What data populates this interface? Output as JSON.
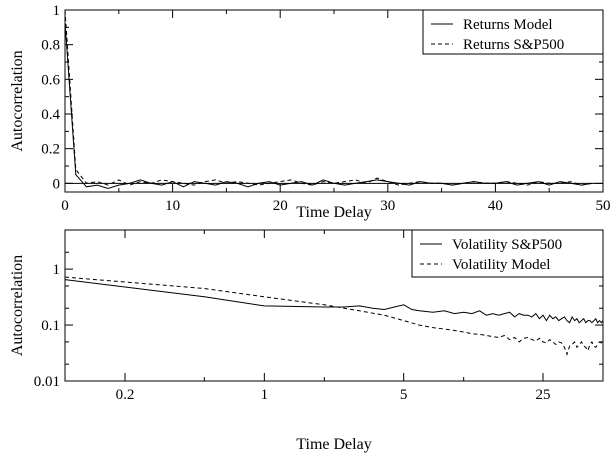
{
  "chart_data": [
    {
      "type": "line",
      "title": "",
      "xlabel": "Time Delay",
      "ylabel": "Autocorrelation",
      "xlim": [
        0,
        50
      ],
      "ylim": [
        -0.05,
        1.0
      ],
      "x_ticks": [
        0,
        10,
        20,
        30,
        40,
        50
      ],
      "y_ticks": [
        0,
        0.2,
        0.4,
        0.6,
        0.8,
        1
      ],
      "x_tick_labels": [
        "0",
        "10",
        "20",
        "30",
        "40",
        "50"
      ],
      "y_tick_labels": [
        "0",
        "0.2",
        "0.4",
        "0.6",
        "0.8",
        "1"
      ],
      "grid": false,
      "zero_line": true,
      "legend": "top-right",
      "series": [
        {
          "name": "Returns Model",
          "style": "solid",
          "x": [
            0,
            1,
            2,
            3,
            4,
            5,
            6,
            7,
            8,
            9,
            10,
            11,
            12,
            13,
            14,
            15,
            16,
            17,
            18,
            19,
            20,
            21,
            22,
            23,
            24,
            25,
            26,
            27,
            28,
            29,
            30,
            31,
            32,
            33,
            34,
            35,
            36,
            37,
            38,
            39,
            40,
            41,
            42,
            43,
            44,
            45,
            46,
            47,
            48,
            49
          ],
          "y": [
            0.93,
            0.05,
            -0.02,
            -0.01,
            -0.03,
            -0.01,
            0.0,
            0.02,
            0.0,
            -0.01,
            0.01,
            -0.02,
            0.01,
            0.0,
            -0.01,
            0.01,
            0.0,
            -0.02,
            0.0,
            0.01,
            -0.01,
            0.0,
            0.01,
            -0.01,
            0.02,
            0.0,
            -0.01,
            0.0,
            0.01,
            0.02,
            0.01,
            0.0,
            -0.01,
            0.01,
            0.0,
            0.0,
            -0.01,
            0.0,
            0.01,
            0.0,
            0.0,
            0.01,
            -0.01,
            0.0,
            0.01,
            -0.01,
            0.01,
            0.0,
            -0.01,
            0.0
          ]
        },
        {
          "name": "Returns S&P500",
          "style": "dashed",
          "x": [
            0,
            1,
            2,
            3,
            4,
            5,
            6,
            7,
            8,
            9,
            10,
            11,
            12,
            13,
            14,
            15,
            16,
            17,
            18,
            19,
            20,
            21,
            22,
            23,
            24,
            25,
            26,
            27,
            28,
            29,
            30,
            31,
            32,
            33,
            34,
            35,
            36,
            37,
            38,
            39,
            40,
            41,
            42,
            43,
            44,
            45,
            46,
            47,
            48,
            49
          ],
          "y": [
            1.0,
            0.08,
            0.0,
            0.01,
            -0.01,
            0.02,
            -0.01,
            0.01,
            0.0,
            0.02,
            0.01,
            0.0,
            -0.01,
            0.01,
            0.02,
            0.0,
            0.01,
            0.0,
            -0.01,
            0.0,
            0.01,
            0.02,
            0.0,
            -0.01,
            0.01,
            0.0,
            0.01,
            0.02,
            0.0,
            0.03,
            0.01,
            -0.01,
            0.0,
            0.01,
            0.0,
            0.0,
            -0.01,
            0.0,
            0.01,
            0.0,
            0.0,
            0.01,
            0.0,
            -0.01,
            0.01,
            0.0,
            0.0,
            0.01,
            -0.01,
            0.0
          ]
        }
      ]
    },
    {
      "type": "line",
      "title": "",
      "xlabel": "Time Delay",
      "ylabel": "Autocorrelation",
      "xscale": "log",
      "yscale": "log",
      "xlim": [
        0.1,
        50
      ],
      "ylim": [
        0.01,
        5
      ],
      "x_ticks": [
        0.2,
        1,
        5,
        25
      ],
      "y_ticks": [
        0.01,
        0.1,
        1
      ],
      "x_tick_labels": [
        "0.2",
        "1",
        "5",
        "25"
      ],
      "y_tick_labels": [
        "0.01",
        "0.1",
        "1"
      ],
      "grid": false,
      "legend": "top-right",
      "series": [
        {
          "name": "Volatility S&P500",
          "style": "solid",
          "x": [
            0.1,
            0.5,
            1,
            2,
            2.5,
            3,
            3.5,
            4,
            4.5,
            5,
            5.5,
            6,
            7,
            8,
            9,
            10,
            11,
            12,
            13,
            14,
            15,
            16,
            17,
            18,
            19,
            20,
            21,
            22,
            23,
            24,
            25,
            26,
            27,
            28,
            29,
            30,
            31,
            32,
            33,
            34,
            35,
            36,
            37,
            38,
            39,
            40,
            41,
            42,
            43,
            44,
            45,
            46,
            47,
            48,
            49,
            50
          ],
          "y": [
            0.65,
            0.32,
            0.22,
            0.21,
            0.21,
            0.22,
            0.2,
            0.19,
            0.21,
            0.23,
            0.19,
            0.18,
            0.17,
            0.18,
            0.16,
            0.17,
            0.16,
            0.18,
            0.15,
            0.16,
            0.15,
            0.16,
            0.17,
            0.14,
            0.16,
            0.15,
            0.15,
            0.14,
            0.16,
            0.13,
            0.15,
            0.12,
            0.15,
            0.13,
            0.14,
            0.12,
            0.13,
            0.14,
            0.12,
            0.11,
            0.14,
            0.12,
            0.13,
            0.11,
            0.12,
            0.13,
            0.11,
            0.12,
            0.12,
            0.11,
            0.12,
            0.13,
            0.11,
            0.12,
            0.11,
            0.12
          ]
        },
        {
          "name": "Volatility Model",
          "style": "dashed",
          "x": [
            0.1,
            0.5,
            1,
            2,
            3,
            4,
            5,
            6,
            7,
            8,
            9,
            10,
            11,
            12,
            13,
            14,
            15,
            16,
            17,
            18,
            19,
            20,
            21,
            22,
            23,
            24,
            25,
            26,
            27,
            28,
            29,
            30,
            31,
            32,
            33,
            34,
            35,
            36,
            37,
            38,
            39,
            40,
            41,
            42,
            43,
            44,
            45,
            46,
            47,
            48,
            49,
            50
          ],
          "y": [
            0.72,
            0.45,
            0.32,
            0.23,
            0.18,
            0.15,
            0.12,
            0.1,
            0.09,
            0.085,
            0.08,
            0.075,
            0.07,
            0.068,
            0.065,
            0.062,
            0.06,
            0.065,
            0.055,
            0.06,
            0.05,
            0.058,
            0.06,
            0.055,
            0.052,
            0.058,
            0.05,
            0.048,
            0.055,
            0.05,
            0.045,
            0.05,
            0.048,
            0.04,
            0.03,
            0.042,
            0.045,
            0.05,
            0.04,
            0.045,
            0.05,
            0.042,
            0.04,
            0.035,
            0.045,
            0.05,
            0.042,
            0.04,
            0.045,
            0.05,
            0.048,
            0.05
          ]
        }
      ]
    }
  ]
}
